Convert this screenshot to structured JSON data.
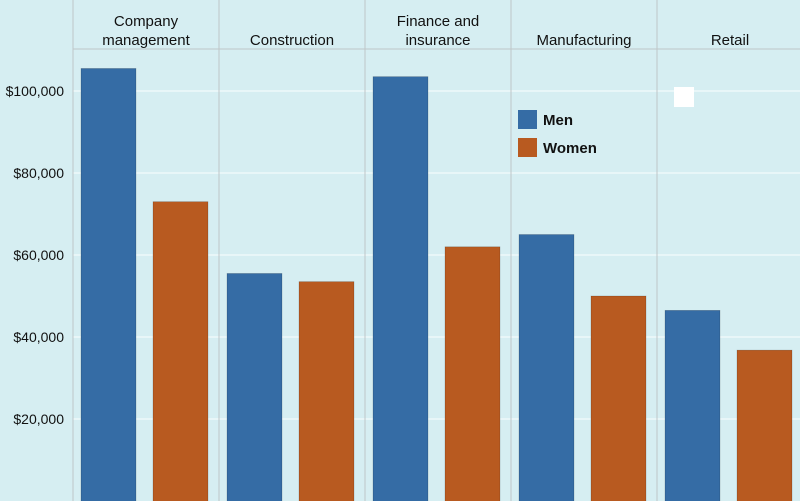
{
  "chart_data": {
    "type": "bar",
    "categories": [
      "Company management",
      "Construction",
      "Finance and insurance",
      "Manufacturing",
      "Retail"
    ],
    "category_label_lines": [
      [
        "Company",
        "management"
      ],
      [
        "Construction"
      ],
      [
        "Finance and",
        "insurance"
      ],
      [
        "Manufacturing"
      ],
      [
        "Retail"
      ]
    ],
    "series": [
      {
        "name": "Men",
        "color": "#356ca5",
        "values": [
          105500,
          55500,
          103500,
          65000,
          46500
        ]
      },
      {
        "name": "Women",
        "color": "#b85a20",
        "values": [
          73000,
          53500,
          62000,
          50000,
          36800
        ]
      }
    ],
    "yticks": [
      20000,
      40000,
      60000,
      80000,
      100000
    ],
    "ytick_labels": [
      "$20,000",
      "$40,000",
      "$60,000",
      "$80,000",
      "$100,000"
    ],
    "ylim": [
      0,
      110000
    ],
    "grid": true,
    "legend": "inside upper right",
    "colors": {
      "background": "#d6eef2",
      "gridline": "#eef8fa",
      "divider": "#bfc6c8"
    }
  }
}
